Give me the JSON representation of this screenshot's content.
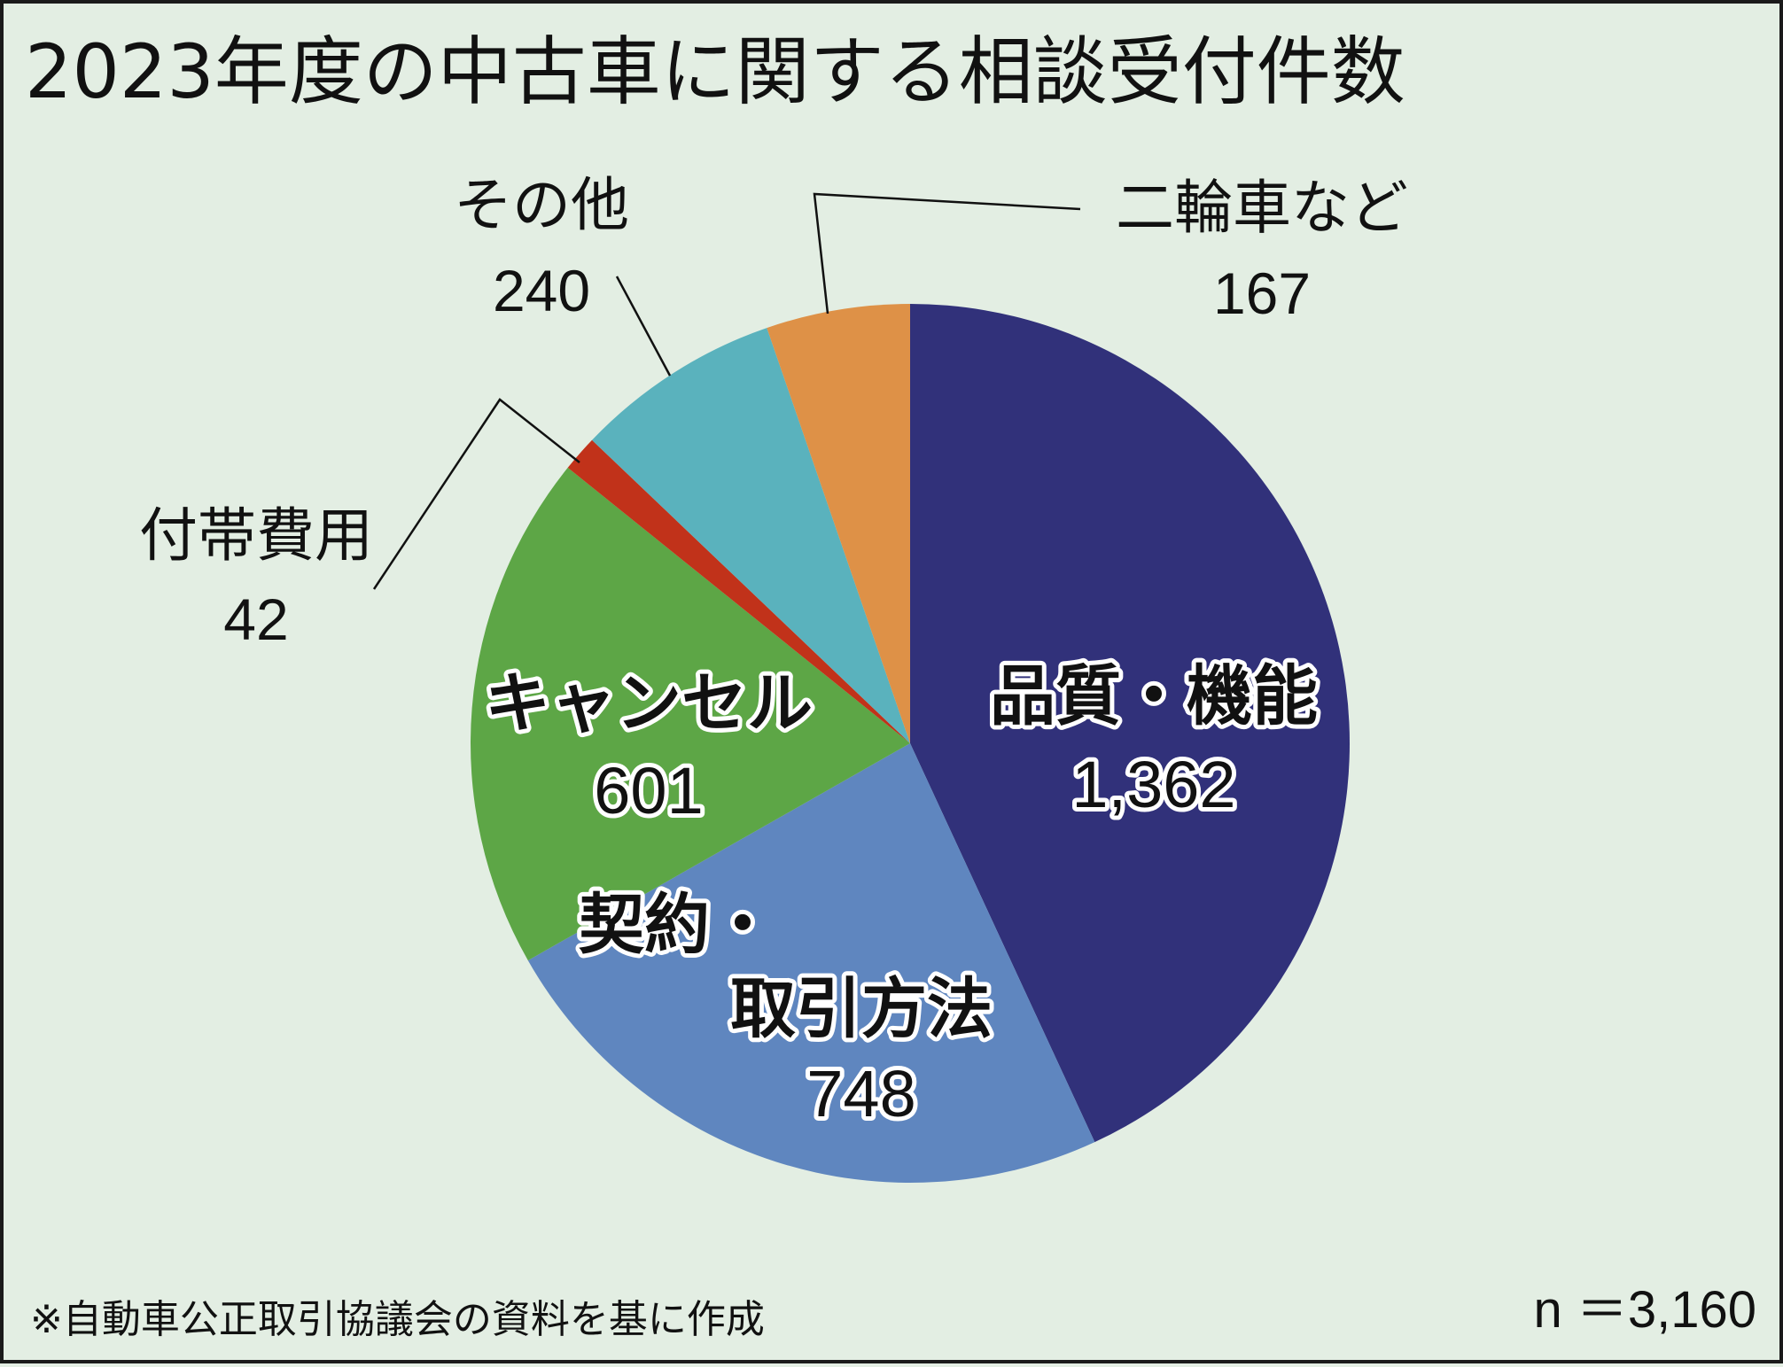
{
  "chart_data": {
    "type": "pie",
    "title": "2023年度の中古車に関する相談受付件数",
    "start": "top, clockwise",
    "slices": [
      {
        "label": "品質・機能",
        "display_value": "1,362",
        "value": 1362,
        "color": "#31317a"
      },
      {
        "label": "契約・取引方法",
        "label_lines": [
          "契約・",
          "取引方法"
        ],
        "display_value": "748",
        "value": 748,
        "color": "#5f86bf"
      },
      {
        "label": "キャンセル",
        "display_value": "601",
        "value": 601,
        "color": "#5da646"
      },
      {
        "label": "付帯費用",
        "display_value": "42",
        "value": 42,
        "color": "#c1321a"
      },
      {
        "label": "その他",
        "display_value": "240",
        "value": 240,
        "color": "#5ab2bd"
      },
      {
        "label": "二輪車など",
        "display_value": "167",
        "value": 167,
        "color": "#de9147"
      }
    ],
    "total_label": "n ＝3,160",
    "total": 3160,
    "note": "※自動車公正取引協議会の資料を基に作成"
  },
  "colors": {
    "background": "#e3eee3",
    "border": "#1a1a1a",
    "text": "#111111"
  }
}
